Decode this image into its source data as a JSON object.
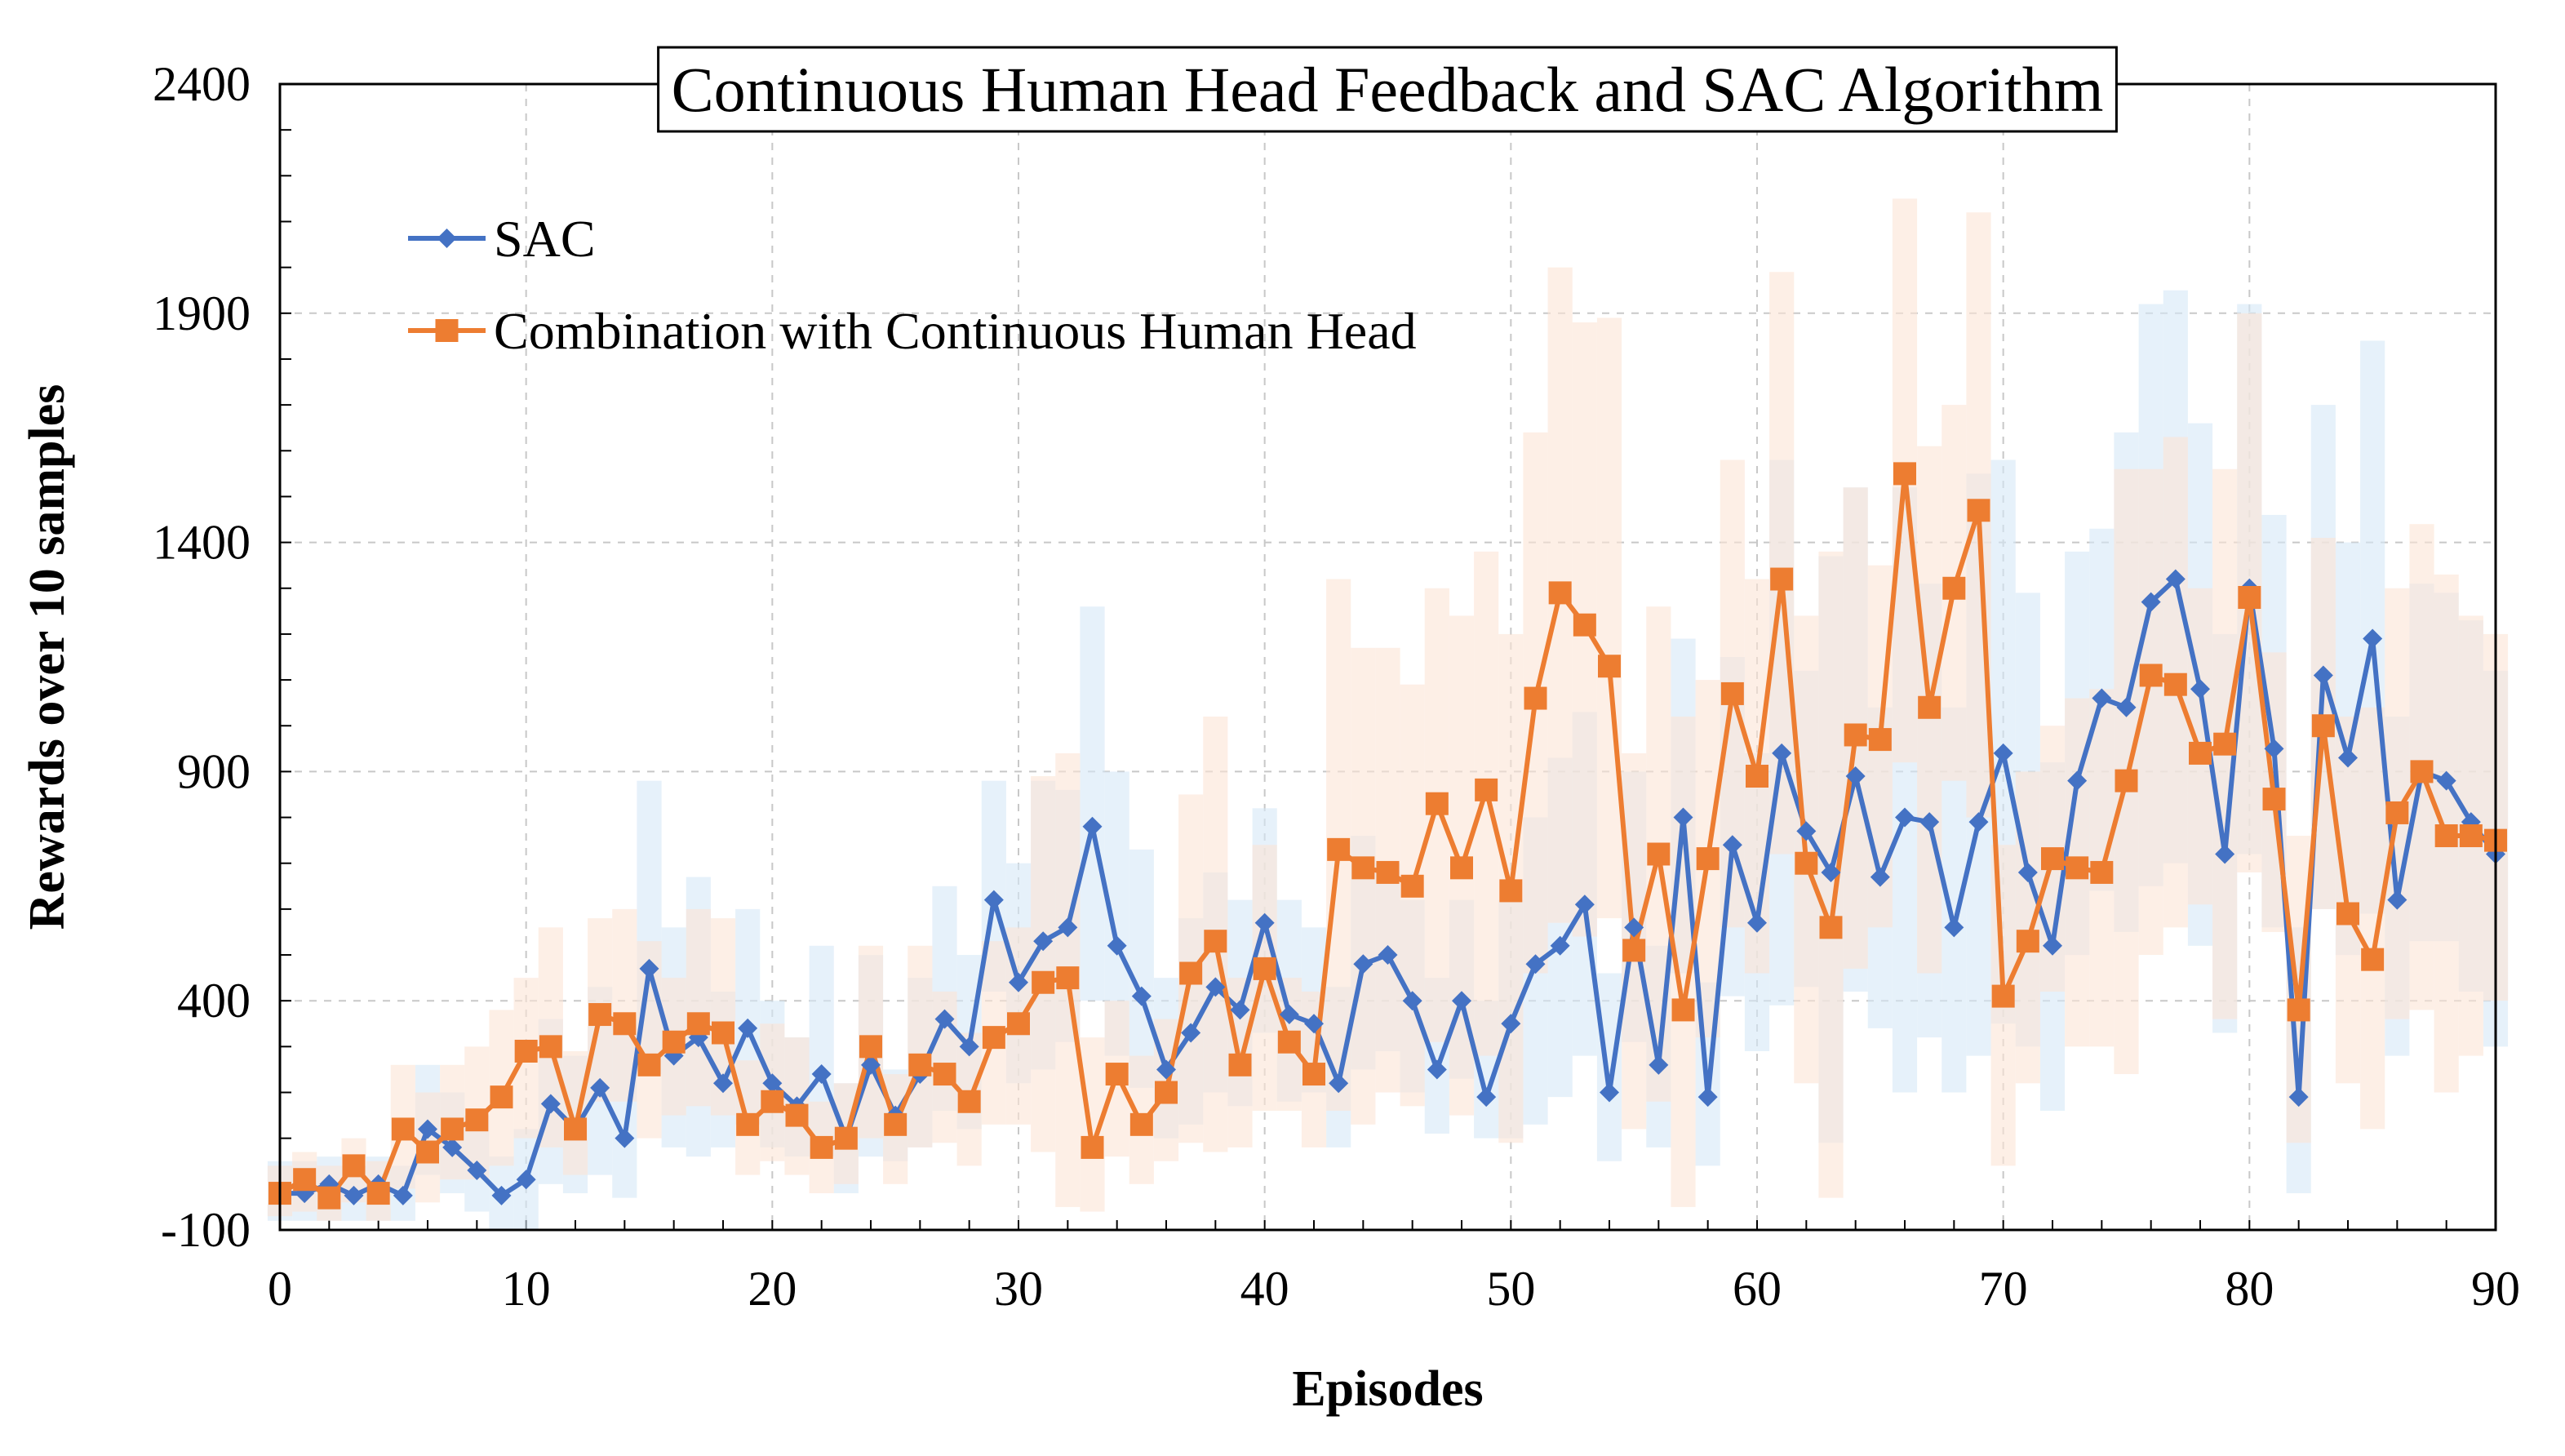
{
  "chart_data": {
    "type": "line",
    "title": "Continuous Human Head Feedback and SAC Algorithm",
    "xlabel": "Episodes",
    "ylabel": "Rewards over 10 samples",
    "xlim": [
      0,
      90
    ],
    "ylim": [
      -100,
      2400
    ],
    "xticks": [
      0,
      10,
      20,
      30,
      40,
      50,
      60,
      70,
      80,
      90
    ],
    "yticks": [
      -100,
      400,
      900,
      1400,
      1900,
      2400
    ],
    "grid": true,
    "legend_position": "top-left",
    "series": [
      {
        "name": "SAC",
        "color": "#4472C4",
        "band_color": "#D6E7F7",
        "marker": "diamond",
        "x": [
          0,
          1,
          2,
          3,
          4,
          5,
          6,
          7,
          8,
          9,
          10,
          11,
          12,
          13,
          14,
          15,
          16,
          17,
          18,
          19,
          20,
          21,
          22,
          23,
          24,
          25,
          26,
          27,
          28,
          29,
          30,
          31,
          32,
          33,
          34,
          35,
          36,
          37,
          38,
          39,
          40,
          41,
          42,
          43,
          44,
          45,
          46,
          47,
          48,
          49,
          50,
          51,
          52,
          53,
          54,
          55,
          56,
          57,
          58,
          59,
          60,
          61,
          62,
          63,
          64,
          65,
          66,
          67,
          68,
          69,
          70,
          71,
          72,
          73,
          74,
          75,
          76,
          77,
          78,
          79,
          80,
          81,
          82,
          83,
          84,
          85,
          86,
          87,
          88,
          89,
          90
        ],
        "values": [
          -20,
          -20,
          0,
          -25,
          0,
          -25,
          120,
          80,
          30,
          -25,
          10,
          175,
          120,
          210,
          100,
          470,
          280,
          320,
          220,
          340,
          220,
          170,
          240,
          100,
          260,
          150,
          240,
          360,
          300,
          620,
          440,
          530,
          560,
          780,
          520,
          410,
          250,
          330,
          430,
          380,
          570,
          370,
          350,
          220,
          480,
          500,
          400,
          250,
          400,
          190,
          350,
          480,
          520,
          610,
          200,
          560,
          260,
          800,
          190,
          740,
          570,
          940,
          770,
          680,
          890,
          670,
          800,
          790,
          560,
          790,
          940,
          680,
          520,
          880,
          1060,
          1040,
          1270,
          1320,
          1080,
          720,
          1300,
          950,
          190,
          1110,
          930,
          1190,
          620,
          900,
          880,
          790,
          720
        ],
        "upper": [
          50,
          50,
          60,
          40,
          60,
          40,
          260,
          200,
          150,
          60,
          120,
          360,
          280,
          430,
          360,
          880,
          560,
          670,
          420,
          600,
          400,
          320,
          520,
          220,
          500,
          250,
          450,
          650,
          500,
          880,
          700,
          880,
          860,
          1260,
          900,
          730,
          450,
          580,
          680,
          620,
          820,
          620,
          560,
          430,
          760,
          700,
          620,
          450,
          620,
          400,
          620,
          800,
          930,
          1030,
          460,
          900,
          520,
          1190,
          440,
          1150,
          940,
          1580,
          1120,
          1370,
          1520,
          1040,
          1520,
          1310,
          1040,
          1550,
          1580,
          1290,
          920,
          1380,
          1430,
          1640,
          1920,
          1950,
          1660,
          1200,
          1920,
          1460,
          560,
          1700,
          1400,
          1840,
          1020,
          1310,
          1290,
          1230,
          1120
        ],
        "lower": [
          -80,
          -80,
          -80,
          -80,
          -80,
          -80,
          20,
          -20,
          -60,
          -100,
          -100,
          0,
          -20,
          20,
          -30,
          240,
          80,
          60,
          80,
          130,
          80,
          60,
          60,
          -20,
          60,
          50,
          80,
          160,
          120,
          420,
          220,
          250,
          310,
          400,
          280,
          210,
          100,
          130,
          200,
          170,
          330,
          180,
          200,
          80,
          250,
          290,
          200,
          110,
          230,
          100,
          100,
          130,
          190,
          280,
          50,
          310,
          80,
          460,
          40,
          410,
          290,
          390,
          430,
          90,
          420,
          340,
          200,
          320,
          200,
          280,
          350,
          300,
          160,
          500,
          640,
          550,
          650,
          700,
          520,
          330,
          720,
          560,
          -20,
          600,
          500,
          590,
          280,
          530,
          530,
          420,
          300
        ]
      },
      {
        "name": "Combination with Continuous Human Head",
        "color": "#ED7D31",
        "band_color": "#FCE4D6",
        "marker": "square",
        "x": [
          0,
          1,
          2,
          3,
          4,
          5,
          6,
          7,
          8,
          9,
          10,
          11,
          12,
          13,
          14,
          15,
          16,
          17,
          18,
          19,
          20,
          21,
          22,
          23,
          24,
          25,
          26,
          27,
          28,
          29,
          30,
          31,
          32,
          33,
          34,
          35,
          36,
          37,
          38,
          39,
          40,
          41,
          42,
          43,
          44,
          45,
          46,
          47,
          48,
          49,
          50,
          51,
          52,
          53,
          54,
          55,
          56,
          57,
          58,
          59,
          60,
          61,
          62,
          63,
          64,
          65,
          66,
          67,
          68,
          69,
          70,
          71,
          72,
          73,
          74,
          75,
          76,
          77,
          78,
          79,
          80,
          81,
          82,
          83,
          84,
          85,
          86,
          87,
          88,
          89,
          90
        ],
        "values": [
          -20,
          10,
          -30,
          40,
          -20,
          120,
          70,
          120,
          140,
          190,
          290,
          300,
          120,
          370,
          350,
          260,
          310,
          350,
          330,
          130,
          180,
          150,
          80,
          100,
          300,
          130,
          260,
          240,
          180,
          320,
          350,
          440,
          450,
          80,
          240,
          130,
          200,
          460,
          530,
          260,
          470,
          310,
          240,
          730,
          690,
          680,
          650,
          830,
          690,
          860,
          640,
          1060,
          1290,
          1220,
          1130,
          510,
          720,
          380,
          710,
          1070,
          890,
          1320,
          700,
          560,
          980,
          970,
          1550,
          1040,
          1300,
          1470,
          410,
          530,
          710,
          690,
          680,
          880,
          1110,
          1090,
          940,
          960,
          1280,
          840,
          380,
          1000,
          590,
          490,
          810,
          900,
          760,
          760,
          750
        ],
        "upper": [
          40,
          70,
          40,
          100,
          50,
          260,
          200,
          260,
          300,
          380,
          450,
          560,
          290,
          580,
          600,
          530,
          450,
          600,
          580,
          270,
          350,
          320,
          180,
          220,
          520,
          240,
          520,
          420,
          330,
          530,
          560,
          890,
          940,
          320,
          400,
          280,
          360,
          850,
          1020,
          450,
          740,
          450,
          420,
          1320,
          1170,
          1170,
          1090,
          1300,
          1240,
          1380,
          1200,
          1640,
          2000,
          1880,
          1890,
          940,
          1260,
          1020,
          1100,
          1580,
          1320,
          1990,
          1240,
          1380,
          1520,
          1350,
          2150,
          1610,
          1700,
          2120,
          740,
          900,
          1000,
          1060,
          1080,
          1560,
          1560,
          1630,
          1300,
          1560,
          1900,
          1160,
          760,
          1410,
          1020,
          1040,
          1300,
          1440,
          1330,
          1240,
          1200
        ],
        "lower": [
          -70,
          -60,
          -80,
          -40,
          -80,
          -10,
          -40,
          10,
          10,
          40,
          100,
          80,
          20,
          180,
          180,
          100,
          150,
          170,
          150,
          20,
          50,
          20,
          -20,
          0,
          100,
          0,
          80,
          90,
          40,
          130,
          130,
          70,
          -50,
          -60,
          60,
          0,
          50,
          90,
          70,
          80,
          160,
          160,
          80,
          160,
          130,
          200,
          170,
          310,
          150,
          280,
          90,
          460,
          570,
          540,
          580,
          120,
          180,
          -50,
          320,
          560,
          460,
          720,
          220,
          -30,
          470,
          560,
          920,
          460,
          880,
          800,
          40,
          220,
          420,
          300,
          300,
          240,
          500,
          560,
          610,
          360,
          680,
          550,
          90,
          600,
          220,
          120,
          360,
          380,
          200,
          280,
          400
        ]
      }
    ]
  }
}
